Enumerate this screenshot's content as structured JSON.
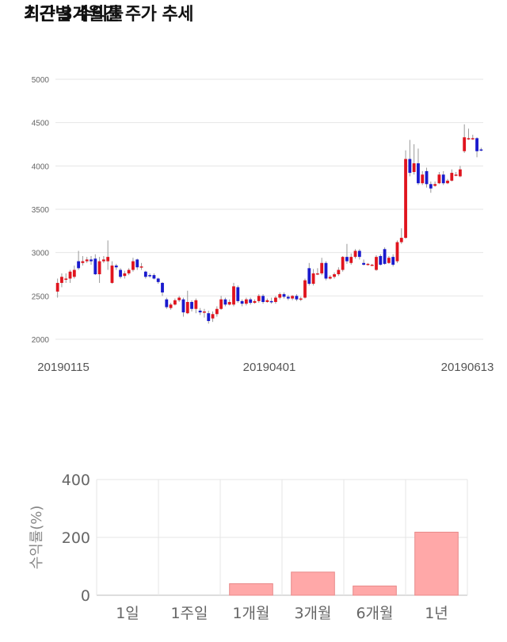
{
  "sections": {
    "price_title": "최근 3개월간 주가 추세",
    "return_title": "기간별 수익률"
  },
  "colors": {
    "up": "#e0141e",
    "down": "#1a1acd",
    "bar_fill": "#ffa8a8",
    "bar_stroke": "#e88888",
    "grid": "#e6e6e6"
  },
  "chart_data": [
    {
      "type": "candlestick",
      "title": "최근 3개월간 주가 추세",
      "yticks": [
        "2000",
        "2500",
        "3000",
        "3500",
        "4000",
        "4500",
        "5000"
      ],
      "ylim": [
        2000,
        5000
      ],
      "xtick_labels": [
        "20190115",
        "20190401",
        "20190613"
      ],
      "grid": true,
      "candles": [
        [
          2550,
          2650,
          2480,
          2700
        ],
        [
          2650,
          2720,
          2600,
          2760
        ],
        [
          2700,
          2700,
          2650,
          2760
        ],
        [
          2700,
          2780,
          2650,
          2800
        ],
        [
          2720,
          2800,
          2700,
          2850
        ],
        [
          2900,
          2820,
          2800,
          3020
        ],
        [
          2880,
          2900,
          2850,
          2960
        ],
        [
          2900,
          2920,
          2880,
          2950
        ],
        [
          2920,
          2900,
          2860,
          2960
        ],
        [
          2930,
          2750,
          2740,
          2980
        ],
        [
          2750,
          2900,
          2650,
          2950
        ],
        [
          2900,
          2920,
          2880,
          2960
        ],
        [
          2900,
          2950,
          2800,
          3140
        ],
        [
          2650,
          2850,
          2640,
          2900
        ],
        [
          2850,
          2830,
          2800,
          2870
        ],
        [
          2800,
          2720,
          2700,
          2820
        ],
        [
          2730,
          2760,
          2700,
          2790
        ],
        [
          2760,
          2800,
          2740,
          2820
        ],
        [
          2800,
          2900,
          2780,
          2940
        ],
        [
          2920,
          2830,
          2800,
          2930
        ],
        [
          2830,
          2840,
          2800,
          2880
        ],
        [
          2780,
          2720,
          2700,
          2790
        ],
        [
          2740,
          2730,
          2710,
          2760
        ],
        [
          2740,
          2700,
          2690,
          2760
        ],
        [
          2700,
          2660,
          2640,
          2710
        ],
        [
          2650,
          2540,
          2500,
          2660
        ],
        [
          2460,
          2370,
          2350,
          2480
        ],
        [
          2360,
          2400,
          2340,
          2420
        ],
        [
          2400,
          2450,
          2390,
          2470
        ],
        [
          2450,
          2480,
          2430,
          2500
        ],
        [
          2460,
          2310,
          2260,
          2480
        ],
        [
          2300,
          2430,
          2290,
          2560
        ],
        [
          2430,
          2350,
          2320,
          2450
        ],
        [
          2350,
          2450,
          2300,
          2470
        ],
        [
          2330,
          2310,
          2280,
          2360
        ],
        [
          2310,
          2320,
          2250,
          2350
        ],
        [
          2300,
          2210,
          2180,
          2330
        ],
        [
          2240,
          2290,
          2200,
          2320
        ],
        [
          2290,
          2350,
          2260,
          2380
        ],
        [
          2350,
          2460,
          2340,
          2500
        ],
        [
          2460,
          2400,
          2380,
          2480
        ],
        [
          2400,
          2430,
          2390,
          2460
        ],
        [
          2400,
          2610,
          2380,
          2650
        ],
        [
          2600,
          2440,
          2420,
          2620
        ],
        [
          2440,
          2410,
          2380,
          2460
        ],
        [
          2410,
          2460,
          2390,
          2480
        ],
        [
          2460,
          2420,
          2400,
          2480
        ],
        [
          2420,
          2440,
          2410,
          2460
        ],
        [
          2440,
          2500,
          2420,
          2520
        ],
        [
          2500,
          2430,
          2410,
          2520
        ],
        [
          2430,
          2450,
          2420,
          2470
        ],
        [
          2440,
          2430,
          2410,
          2480
        ],
        [
          2430,
          2480,
          2410,
          2500
        ],
        [
          2480,
          2520,
          2460,
          2540
        ],
        [
          2520,
          2490,
          2470,
          2540
        ],
        [
          2490,
          2470,
          2450,
          2510
        ],
        [
          2470,
          2500,
          2450,
          2510
        ],
        [
          2500,
          2460,
          2440,
          2520
        ],
        [
          2460,
          2470,
          2440,
          2490
        ],
        [
          2480,
          2680,
          2470,
          2700
        ],
        [
          2820,
          2640,
          2620,
          2880
        ],
        [
          2640,
          2760,
          2620,
          2810
        ],
        [
          2760,
          2760,
          2740,
          2820
        ],
        [
          2760,
          2880,
          2740,
          2940
        ],
        [
          2880,
          2700,
          2680,
          2900
        ],
        [
          2700,
          2720,
          2690,
          2740
        ],
        [
          2720,
          2750,
          2700,
          2770
        ],
        [
          2750,
          2800,
          2730,
          2830
        ],
        [
          2800,
          2950,
          2780,
          2960
        ],
        [
          2950,
          2900,
          2870,
          3100
        ],
        [
          2880,
          2950,
          2860,
          2990
        ],
        [
          2950,
          3020,
          2930,
          3040
        ],
        [
          3020,
          2950,
          2920,
          3040
        ],
        [
          2880,
          2860,
          2850,
          2920
        ],
        [
          2860,
          2870,
          2850,
          2880
        ],
        [
          2860,
          2860,
          2850,
          2870
        ],
        [
          2800,
          2950,
          2790,
          2970
        ],
        [
          2960,
          2860,
          2850,
          2980
        ],
        [
          3040,
          2870,
          2860,
          3060
        ],
        [
          2880,
          2940,
          2870,
          2960
        ],
        [
          2950,
          2860,
          2840,
          2980
        ],
        [
          2900,
          3120,
          2880,
          3140
        ],
        [
          3120,
          3170,
          3100,
          3280
        ],
        [
          3170,
          4080,
          3160,
          4180
        ],
        [
          4080,
          3920,
          3880,
          4300
        ],
        [
          3930,
          4030,
          3900,
          4250
        ],
        [
          4030,
          3800,
          3780,
          4200
        ],
        [
          3800,
          3900,
          3780,
          3940
        ],
        [
          3940,
          3790,
          3750,
          3980
        ],
        [
          3790,
          3740,
          3690,
          3820
        ],
        [
          3770,
          3790,
          3760,
          3820
        ],
        [
          3800,
          3900,
          3790,
          3930
        ],
        [
          3900,
          3800,
          3780,
          3940
        ],
        [
          3800,
          3830,
          3790,
          3850
        ],
        [
          3830,
          3920,
          3820,
          3960
        ],
        [
          3900,
          3900,
          3880,
          3930
        ],
        [
          3880,
          3960,
          3870,
          4000
        ],
        [
          4170,
          4330,
          4150,
          4480
        ],
        [
          4320,
          4320,
          4300,
          4430
        ],
        [
          4310,
          4320,
          4300,
          4360
        ],
        [
          4320,
          4170,
          4100,
          4330
        ],
        [
          4190,
          4180,
          4170,
          4210
        ]
      ]
    },
    {
      "type": "bar",
      "title": "기간별 수익률",
      "categories": [
        "1일",
        "1주일",
        "1개월",
        "3개월",
        "6개월",
        "1년"
      ],
      "values": [
        0,
        0,
        40,
        80,
        32,
        218
      ],
      "ylabel": "수익률(%)",
      "yticks": [
        "0",
        "200",
        "400"
      ],
      "ylim": [
        0,
        400
      ],
      "grid": true
    }
  ]
}
